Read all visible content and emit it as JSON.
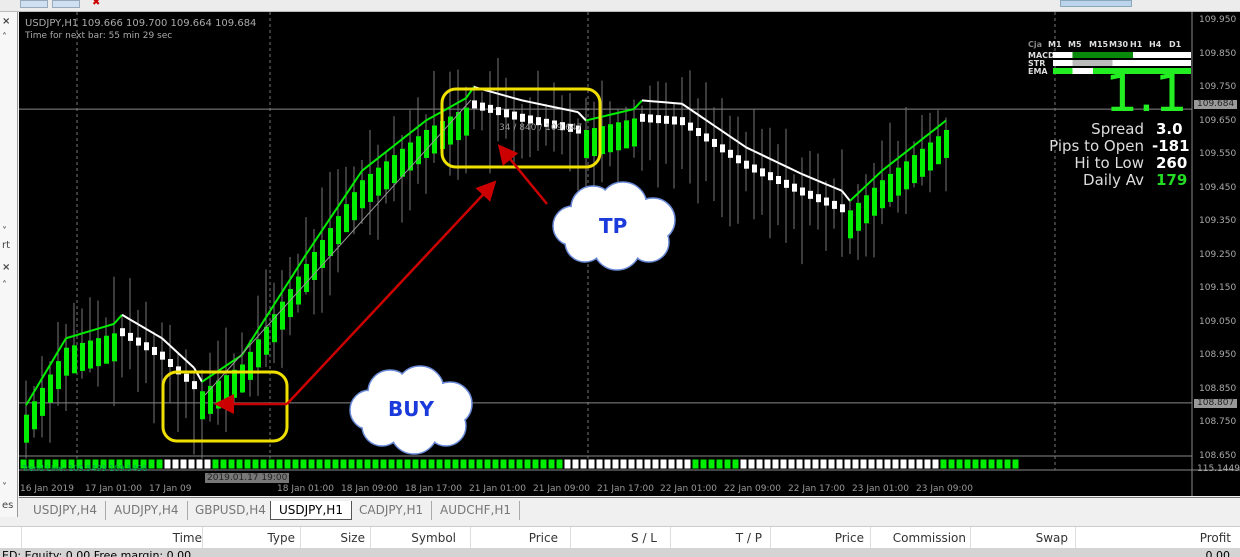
{
  "chart": {
    "header": "USDJPY,H1  109.666 109.700 109.664 109.684",
    "timer": "Time for next bar: 55 min 29 sec",
    "bid_label": "109.684",
    "line_label": "108.807",
    "trend_text": "Trend Line: 109.5499 109.5498",
    "trendline_label": "34 / 840 / 109.647",
    "subwindow_value": "115.1449",
    "crosshair_time": "2019.01.17 19:00",
    "price_ticks": [
      "109.950",
      "109.850",
      "109.750",
      "109.650",
      "109.550",
      "109.450",
      "109.350",
      "109.250",
      "109.150",
      "109.050",
      "108.950",
      "108.850",
      "108.750",
      "108.650"
    ],
    "time_ticks": [
      "16 Jan 2019",
      "17 Jan 01:00",
      "17 Jan 09",
      "18 Jan 01:00",
      "18 Jan 09:00",
      "18 Jan 17:00",
      "21 Jan 01:00",
      "21 Jan 09:00",
      "21 Jan 17:00",
      "22 Jan 01:00",
      "22 Jan 09:00",
      "22 Jan 17:00",
      "23 Jan 01:00",
      "23 Jan 09:00"
    ],
    "price_path": [
      [
        0,
        108.75
      ],
      [
        5,
        108.95
      ],
      [
        12,
        109.0
      ],
      [
        17,
        108.93
      ],
      [
        22,
        108.82
      ],
      [
        27,
        108.9
      ],
      [
        35,
        109.2
      ],
      [
        42,
        109.45
      ],
      [
        50,
        109.6
      ],
      [
        56,
        109.68
      ],
      [
        62,
        109.64
      ],
      [
        70,
        109.6
      ],
      [
        77,
        109.64
      ],
      [
        82,
        109.63
      ],
      [
        90,
        109.5
      ],
      [
        97,
        109.42
      ],
      [
        103,
        109.36
      ],
      [
        107,
        109.45
      ],
      [
        115,
        109.6
      ]
    ],
    "strip_colors": "GGGGGGGGGGGGGGGGGGWWWWWWGGGGGGGGGGGGGGGGGGGGGGGGGGGGGGGGGGGGGGGGGGGGWWWWWWWWWWWWWWWWGGGGGGWWWWWWWWWWWWWWWWWWWWWWWWWGGGGGGGGGG",
    "colors": {
      "up": "#00ee00",
      "down": "#ffffff",
      "annotation_box": "#f0e000",
      "arrow": "#cc0000",
      "cloud_text": "#1b3adb"
    }
  },
  "annotations": {
    "tp": "TP",
    "buy": "BUY"
  },
  "dashboard": {
    "timeframes": [
      "M1",
      "M5",
      "M15",
      "M30",
      "H1",
      "H4",
      "D1"
    ],
    "corner": "Cja",
    "rows": [
      "MACD",
      "STR",
      "EMA"
    ],
    "big_value": "1.1",
    "stats": [
      {
        "label": "Spread",
        "value": "3.0"
      },
      {
        "label": "Pips to Open",
        "value": "-181"
      },
      {
        "label": "Hi to Low",
        "value": "260"
      },
      {
        "label": "Daily Av",
        "value": "179",
        "color": "#22dd22"
      }
    ]
  },
  "left_panel": {
    "label1": "rt",
    "label2": "es"
  },
  "tabs": [
    "USDJPY,H4",
    "AUDJPY,H4",
    "GBPUSD,H4",
    "USDJPY,H1",
    "CADJPY,H1",
    "AUDCHF,H1"
  ],
  "active_tab": "USDJPY,H1",
  "table": {
    "columns": [
      "Time",
      "Type",
      "Size",
      "Symbol",
      "Price",
      "S / L",
      "T / P",
      "Price",
      "Commission",
      "Swap",
      "Profit"
    ]
  },
  "status": {
    "text": "ED: Equity: 0.00  Free margin: 0.00",
    "profit": "0.00"
  }
}
